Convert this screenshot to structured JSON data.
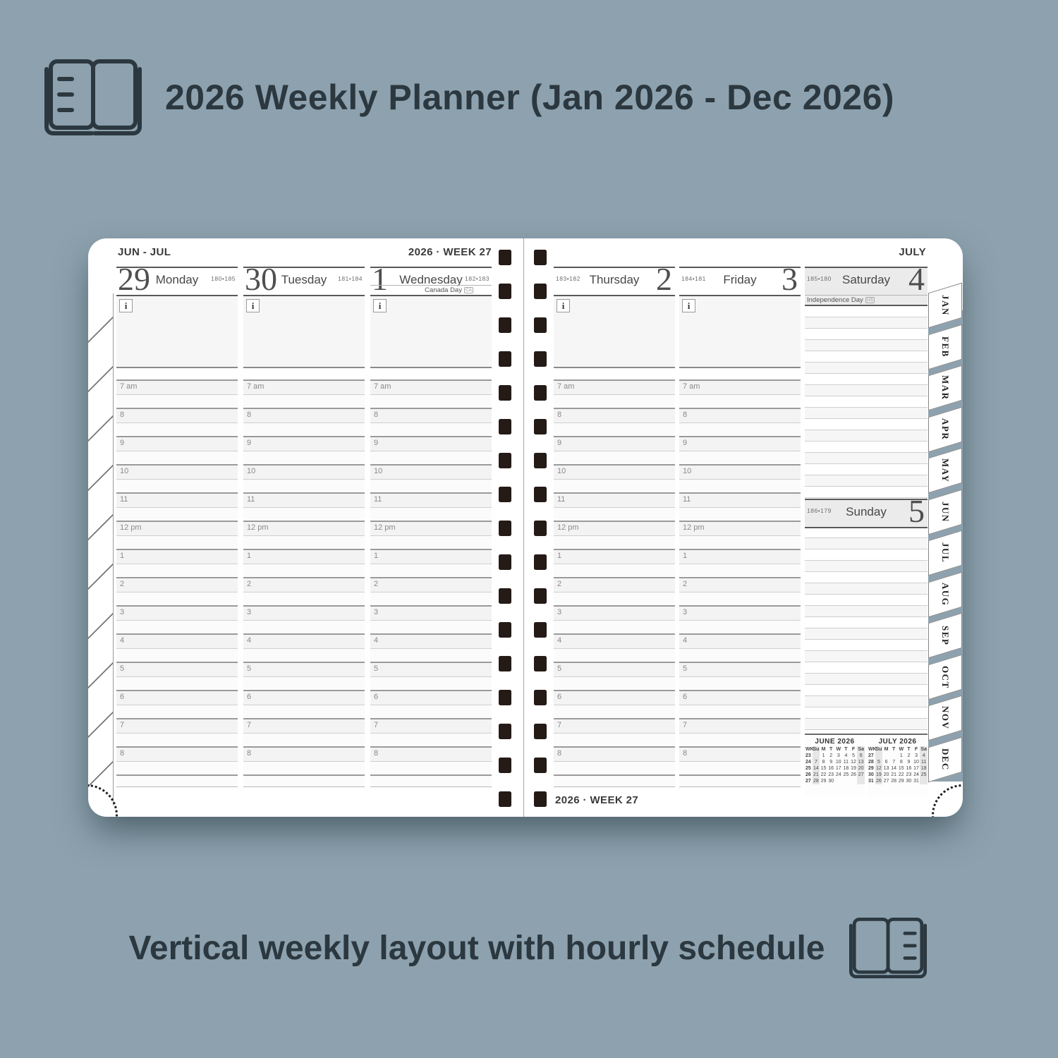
{
  "colors": {
    "background": "#8da2ae",
    "ink": "#2c3840",
    "page": "#ffffff",
    "binding_hole": "#241a16",
    "weekend_header_shade": "#ebebeb"
  },
  "header": {
    "title": "2026 Weekly Planner (Jan 2026 - Dec 2026)"
  },
  "footer": {
    "caption": "Vertical weekly layout with hourly schedule"
  },
  "planner": {
    "note_icon": "i",
    "hour_labels": [
      "7 am",
      "8",
      "9",
      "10",
      "11",
      "12 pm",
      "1",
      "2",
      "3",
      "4",
      "5",
      "6",
      "7",
      "8"
    ],
    "month_tabs": [
      "JAN",
      "FEB",
      "MAR",
      "APR",
      "MAY",
      "JUN",
      "JUL",
      "AUG",
      "SEP",
      "OCT",
      "NOV",
      "DEC"
    ],
    "left_page": {
      "month_range_label": "JUN - JUL",
      "week_label": "2026 · WEEK 27",
      "days": [
        {
          "date": "29",
          "name": "Monday",
          "day_of_year": "180•185"
        },
        {
          "date": "30",
          "name": "Tuesday",
          "day_of_year": "181•184"
        },
        {
          "date": "1",
          "name": "Wednesday",
          "day_of_year": "182•183",
          "holiday": "Canada Day",
          "holiday_badge": "CA"
        }
      ]
    },
    "right_page": {
      "month_label": "JULY",
      "bottom_week_label": "2026 · WEEK 27",
      "days": [
        {
          "date": "2",
          "name": "Thursday",
          "day_of_year": "183•182"
        },
        {
          "date": "3",
          "name": "Friday",
          "day_of_year": "184•181"
        }
      ],
      "saturday": {
        "date": "4",
        "name": "Saturday",
        "day_of_year": "185•180",
        "holiday": "Independence Day",
        "holiday_badge": "US"
      },
      "sunday": {
        "date": "5",
        "name": "Sunday",
        "day_of_year": "186•179"
      }
    },
    "mini_calendars": [
      {
        "title": "JUNE 2026",
        "headers": [
          "WK",
          "Su",
          "M",
          "T",
          "W",
          "T",
          "F",
          "Sa"
        ],
        "rows": [
          [
            "23",
            "",
            "1",
            "2",
            "3",
            "4",
            "5",
            "6"
          ],
          [
            "24",
            "7",
            "8",
            "9",
            "10",
            "11",
            "12",
            "13"
          ],
          [
            "25",
            "14",
            "15",
            "16",
            "17",
            "18",
            "19",
            "20"
          ],
          [
            "26",
            "21",
            "22",
            "23",
            "24",
            "25",
            "26",
            "27"
          ],
          [
            "27",
            "28",
            "29",
            "30",
            "",
            "",
            "",
            ""
          ]
        ]
      },
      {
        "title": "JULY 2026",
        "headers": [
          "WK",
          "Su",
          "M",
          "T",
          "W",
          "T",
          "F",
          "Sa"
        ],
        "rows": [
          [
            "27",
            "",
            "",
            "",
            "1",
            "2",
            "3",
            "4"
          ],
          [
            "28",
            "5",
            "6",
            "7",
            "8",
            "9",
            "10",
            "11"
          ],
          [
            "29",
            "12",
            "13",
            "14",
            "15",
            "16",
            "17",
            "18"
          ],
          [
            "30",
            "19",
            "20",
            "21",
            "22",
            "23",
            "24",
            "25"
          ],
          [
            "31",
            "26",
            "27",
            "28",
            "29",
            "30",
            "31",
            ""
          ]
        ]
      }
    ]
  }
}
